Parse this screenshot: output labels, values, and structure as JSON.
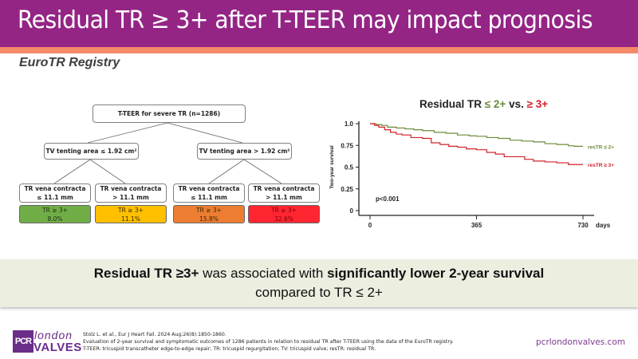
{
  "header": {
    "title": "Residual TR ≥ 3+ after T-TEER may impact prognosis",
    "subtitle": "EuroTR Registry"
  },
  "tree": {
    "root": "T-TEER for severe TR (n=1286)",
    "level1": [
      "TV tenting area ≤  1.92 cm²",
      "TV tenting area > 1.92 cm²"
    ],
    "leaves": [
      {
        "line1": "TR vena contracta",
        "line2": "≤ 11.1 mm",
        "result_label": "TR ≥ 3+",
        "result_value": "8.0%",
        "color": "#70ad47"
      },
      {
        "line1": "TR vena contracta",
        "line2": "> 11.1 mm",
        "result_label": "TR ≥ 3+",
        "result_value": "11.1%",
        "color": "#ffc000"
      },
      {
        "line1": "TR vena contracta",
        "line2": "≤ 11.1 mm",
        "result_label": "TR ≥ 3+",
        "result_value": "15.8%",
        "color": "#ed7d31"
      },
      {
        "line1": "TR vena contracta",
        "line2": "> 11.1 mm",
        "result_label": "TR ≥ 3+",
        "result_value": "32.6%",
        "color": "#ff2631"
      }
    ]
  },
  "chart_data": {
    "type": "line",
    "title_parts": {
      "prefix": "Residual TR ",
      "green": "≤ 2+",
      "mid": " vs. ",
      "red": "≥ 3+"
    },
    "xlabel": "days",
    "ylabel": "Two-year survival",
    "xlim": [
      0,
      730
    ],
    "ylim": [
      0,
      1.0
    ],
    "xticks": [
      "0",
      "365",
      "730"
    ],
    "xtick_values": [
      0,
      365,
      730
    ],
    "yticks": [
      "0",
      "0.25",
      "0.5",
      "0.75",
      "1.0"
    ],
    "ytick_values": [
      0,
      0.25,
      0.5,
      0.75,
      1.0
    ],
    "annotation": "p<0.001",
    "grid": false,
    "series": [
      {
        "name": "resTR ≤ 2+",
        "color": "#6b8a3a",
        "x": [
          0,
          20,
          40,
          60,
          90,
          120,
          150,
          180,
          220,
          260,
          300,
          340,
          365,
          400,
          440,
          480,
          520,
          560,
          600,
          640,
          680,
          700,
          730
        ],
        "y": [
          1.0,
          0.99,
          0.98,
          0.96,
          0.95,
          0.94,
          0.93,
          0.92,
          0.9,
          0.89,
          0.87,
          0.86,
          0.855,
          0.84,
          0.83,
          0.81,
          0.8,
          0.79,
          0.77,
          0.76,
          0.745,
          0.74,
          0.74
        ]
      },
      {
        "name": "resTR ≥ 3+",
        "color": "#d0202a",
        "x": [
          0,
          15,
          30,
          50,
          70,
          90,
          110,
          140,
          160,
          180,
          210,
          240,
          270,
          300,
          330,
          365,
          400,
          430,
          460,
          500,
          530,
          560,
          600,
          640,
          680,
          700,
          730
        ],
        "y": [
          1.0,
          0.98,
          0.96,
          0.93,
          0.9,
          0.88,
          0.87,
          0.84,
          0.84,
          0.83,
          0.78,
          0.76,
          0.74,
          0.73,
          0.71,
          0.7,
          0.67,
          0.65,
          0.62,
          0.62,
          0.59,
          0.57,
          0.56,
          0.55,
          0.53,
          0.53,
          0.53
        ]
      }
    ]
  },
  "callout": {
    "bold1": "Residual TR ≥3+",
    "normal1": " was associated with ",
    "bold2": "significantly lower 2-year survival",
    "line2": "compared to TR ≤ 2+"
  },
  "footer": {
    "logo_pcr": "PCR",
    "logo_london": "london",
    "logo_valves": "VALVES",
    "ref1": "Stolz L. et al., Eur J Heart Fail. 2024 Aug;26(8):1850-1860.",
    "ref2": "Evaluation of 2-year survival and symptomatic outcomes of 1286 patients in relation to residual TR after T-TEER using the data of the EuroTR registry.",
    "ref3": "T-TEER: tricuspid transcatheter edge-to-edge repair; TR: tricuspid regurgitation; TV: tricuspid valve; resTR: residual TR.",
    "website": "pcrlondonvalves.com"
  }
}
